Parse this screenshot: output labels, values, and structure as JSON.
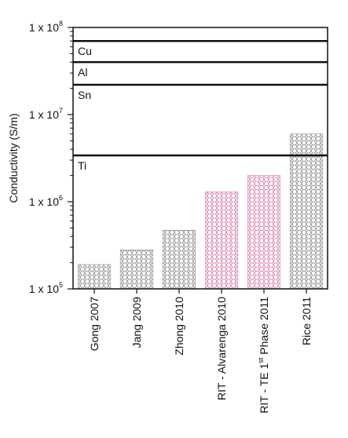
{
  "chart_data": {
    "type": "bar",
    "ylabel": "Conductivity (S/m)",
    "yscale": "log",
    "ylim": [
      100000,
      100000000
    ],
    "yticks": [
      {
        "base": "1 x 10",
        "exp": "5"
      },
      {
        "base": "1 x 10",
        "exp": "6"
      },
      {
        "base": "1 x 10",
        "exp": "7"
      },
      {
        "base": "1 x 10",
        "exp": "8"
      }
    ],
    "ytick_values": [
      100000,
      1000000,
      10000000,
      100000000
    ],
    "categories": [
      {
        "text": "Gong 2007",
        "sup": "",
        "rest": ""
      },
      {
        "text": "Jang 2009",
        "sup": "",
        "rest": ""
      },
      {
        "text": "Zhong 2010",
        "sup": "",
        "rest": ""
      },
      {
        "text": "RIT - Alvarenga 2010",
        "sup": "",
        "rest": ""
      },
      {
        "text": "RIT - TE 1",
        "sup": "st",
        "rest": " Phase 2011"
      },
      {
        "text": "Rice 2011",
        "sup": "",
        "rest": ""
      }
    ],
    "values": [
      190000,
      280000,
      470000,
      1300000,
      2000000,
      6000000
    ],
    "bar_colors": [
      "#8a8a8a",
      "#8a8a8a",
      "#8a8a8a",
      "#d77aa6",
      "#d77aa6",
      "#8a8a8a"
    ],
    "reference_lines": [
      {
        "label": "Cu",
        "value": 70000000
      },
      {
        "label": "Al",
        "value": 40000000
      },
      {
        "label": "Sn",
        "value": 22000000
      },
      {
        "label": "Ti",
        "value": 3400000
      }
    ],
    "grid": false,
    "legend": "none"
  }
}
